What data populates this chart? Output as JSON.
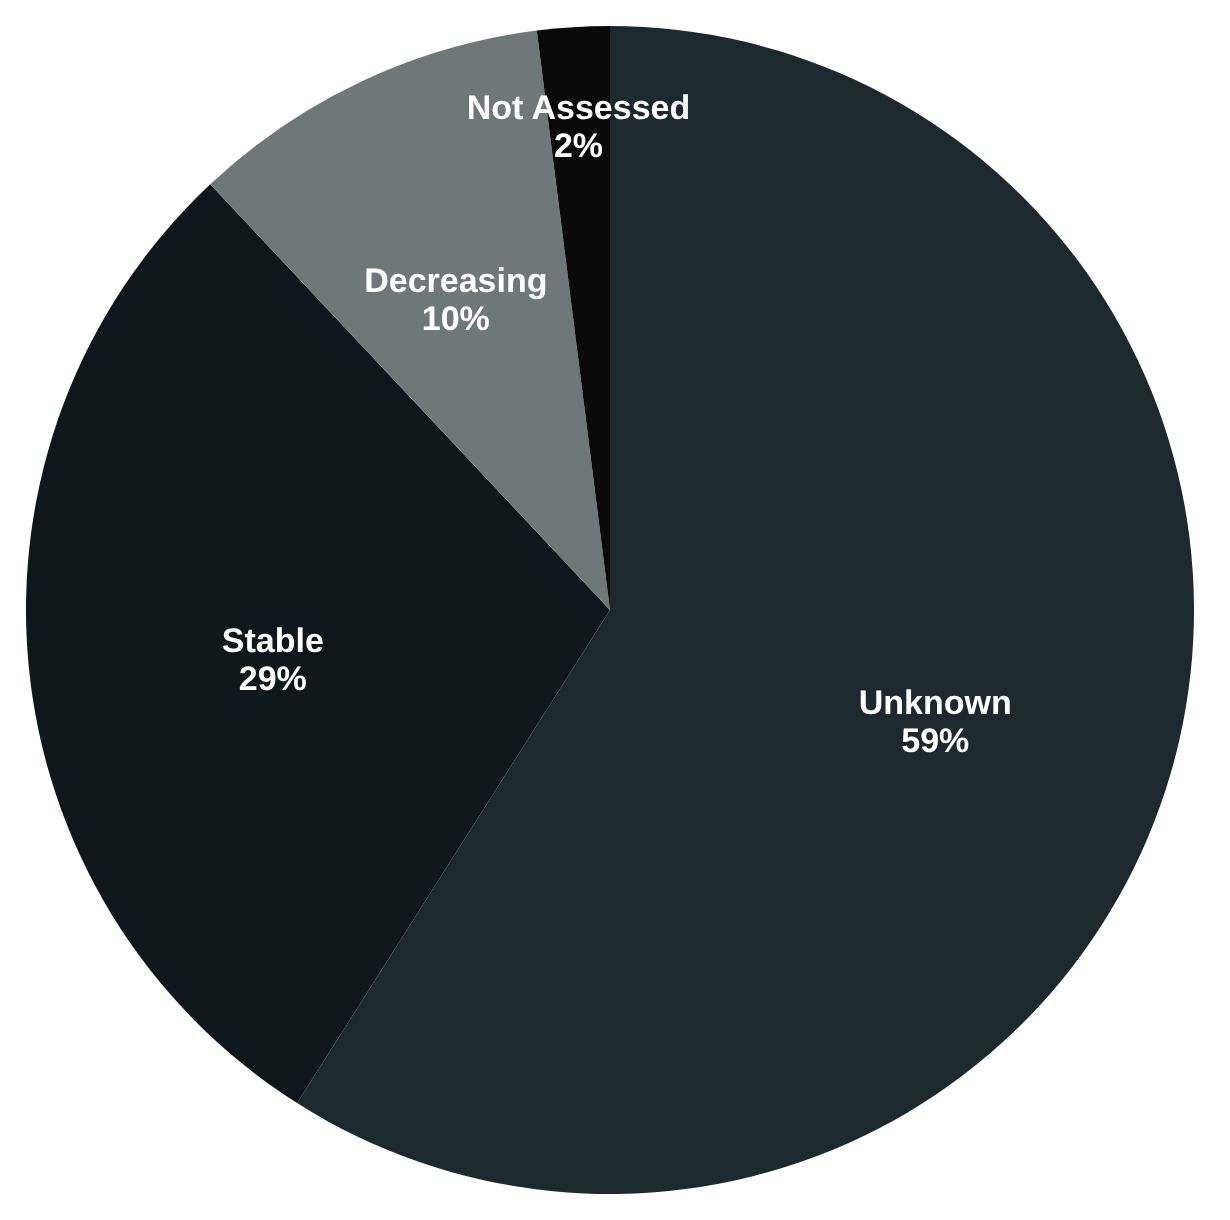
{
  "chart_data": {
    "type": "pie",
    "categories": [
      "Unknown",
      "Stable",
      "Decreasing",
      "Not Assessed"
    ],
    "values": [
      59,
      29,
      10,
      2
    ],
    "value_labels": [
      "59%",
      "29%",
      "10%",
      "2%"
    ],
    "colors": [
      "#1c2a30",
      "#0e181c",
      "#6f7878",
      "#0a0a0a"
    ],
    "legend": false
  }
}
